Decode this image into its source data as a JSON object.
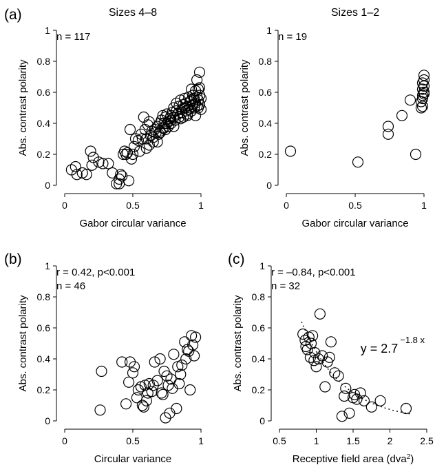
{
  "panel_labels": {
    "a": "(a)",
    "b": "(b)",
    "c": "(c)"
  },
  "colors": {
    "ink": "#000000",
    "background": "#ffffff"
  },
  "chart_data": [
    {
      "type": "scatter",
      "panel": "(a)",
      "title": "Sizes 4–8",
      "xlabel": "Gabor circular variance",
      "ylabel": "Abs. contrast polarity",
      "xlim": [
        0,
        1
      ],
      "ylim": [
        0,
        1
      ],
      "xticks": [
        0,
        0.5,
        1
      ],
      "xtick_labels": [
        "0",
        "0.5",
        "1"
      ],
      "yticks": [
        0,
        0.2,
        0.4,
        0.6,
        0.8,
        1
      ],
      "ytick_labels": [
        "0",
        "0.2",
        "0.4",
        "0.6",
        "0.8",
        "1"
      ],
      "annotation": "n = 117",
      "x": [
        0.05,
        0.08,
        0.09,
        0.13,
        0.16,
        0.19,
        0.2,
        0.21,
        0.25,
        0.28,
        0.32,
        0.35,
        0.38,
        0.4,
        0.4,
        0.41,
        0.42,
        0.43,
        0.44,
        0.45,
        0.46,
        0.47,
        0.48,
        0.49,
        0.5,
        0.51,
        0.52,
        0.54,
        0.55,
        0.56,
        0.57,
        0.58,
        0.59,
        0.6,
        0.61,
        0.62,
        0.63,
        0.64,
        0.65,
        0.66,
        0.67,
        0.68,
        0.69,
        0.7,
        0.7,
        0.71,
        0.72,
        0.72,
        0.73,
        0.74,
        0.74,
        0.75,
        0.76,
        0.76,
        0.77,
        0.78,
        0.78,
        0.79,
        0.8,
        0.8,
        0.81,
        0.82,
        0.82,
        0.83,
        0.84,
        0.84,
        0.85,
        0.86,
        0.86,
        0.87,
        0.87,
        0.88,
        0.88,
        0.89,
        0.89,
        0.9,
        0.9,
        0.91,
        0.91,
        0.92,
        0.92,
        0.93,
        0.93,
        0.94,
        0.94,
        0.95,
        0.95,
        0.96,
        0.96,
        0.97,
        0.97,
        0.97,
        0.98,
        0.98,
        0.98,
        0.99,
        0.99,
        0.99,
        1.0,
        1.0,
        0.93,
        0.9,
        0.85,
        0.8,
        0.75,
        0.7,
        0.65,
        0.62,
        0.6,
        0.68,
        0.73,
        0.78,
        0.83,
        0.88,
        0.95,
        0.99,
        0.96
      ],
      "y": [
        0.1,
        0.12,
        0.07,
        0.08,
        0.07,
        0.22,
        0.13,
        0.18,
        0.15,
        0.14,
        0.14,
        0.08,
        0.01,
        0.04,
        0.01,
        0.07,
        0.06,
        0.2,
        0.22,
        0.2,
        0.21,
        0.03,
        0.36,
        0.17,
        0.2,
        0.25,
        0.3,
        0.29,
        0.22,
        0.33,
        0.3,
        0.44,
        0.36,
        0.3,
        0.39,
        0.41,
        0.32,
        0.35,
        0.31,
        0.36,
        0.34,
        0.38,
        0.33,
        0.4,
        0.35,
        0.42,
        0.37,
        0.45,
        0.4,
        0.44,
        0.36,
        0.46,
        0.41,
        0.38,
        0.43,
        0.45,
        0.4,
        0.47,
        0.44,
        0.5,
        0.42,
        0.48,
        0.53,
        0.46,
        0.51,
        0.44,
        0.55,
        0.49,
        0.47,
        0.52,
        0.44,
        0.5,
        0.56,
        0.48,
        0.53,
        0.51,
        0.46,
        0.57,
        0.49,
        0.54,
        0.5,
        0.55,
        0.48,
        0.58,
        0.52,
        0.5,
        0.56,
        0.53,
        0.61,
        0.51,
        0.57,
        0.68,
        0.55,
        0.5,
        0.62,
        0.58,
        0.73,
        0.52,
        0.56,
        0.49,
        0.62,
        0.45,
        0.43,
        0.38,
        0.4,
        0.34,
        0.28,
        0.26,
        0.24,
        0.28,
        0.37,
        0.42,
        0.46,
        0.5,
        0.55,
        0.63,
        0.45
      ]
    },
    {
      "type": "scatter",
      "panel": "",
      "title": "Sizes 1–2",
      "xlabel": "Gabor circular variance",
      "ylabel": "Abs. contrast polarity",
      "xlim": [
        0,
        1
      ],
      "ylim": [
        0,
        1
      ],
      "xticks": [
        0,
        0.5,
        1
      ],
      "xtick_labels": [
        "0",
        "0.5",
        "1"
      ],
      "yticks": [
        0,
        0.2,
        0.4,
        0.6,
        0.8,
        1
      ],
      "ytick_labels": [
        "0",
        "0.2",
        "0.4",
        "0.6",
        "0.8",
        "1"
      ],
      "annotation": "n = 19",
      "x": [
        0.03,
        0.52,
        0.74,
        0.74,
        0.84,
        0.9,
        0.94,
        0.98,
        0.99,
        0.99,
        0.99,
        1.0,
        1.0,
        1.0,
        0.98,
        0.99,
        1.0,
        0.99,
        1.0
      ],
      "y": [
        0.22,
        0.15,
        0.38,
        0.33,
        0.45,
        0.55,
        0.2,
        0.5,
        0.58,
        0.62,
        0.66,
        0.71,
        0.68,
        0.6,
        0.54,
        0.56,
        0.64,
        0.51,
        0.59
      ]
    },
    {
      "type": "scatter",
      "panel": "(b)",
      "title": "",
      "xlabel": "Circular variance",
      "ylabel": "Abs. contrast polarity",
      "xlim": [
        0,
        1
      ],
      "ylim": [
        0,
        1
      ],
      "xticks": [
        0,
        0.5,
        1
      ],
      "xtick_labels": [
        "0",
        "0.5",
        "1"
      ],
      "yticks": [
        0,
        0.2,
        0.4,
        0.6,
        0.8,
        1
      ],
      "ytick_labels": [
        "0",
        "0.2",
        "0.4",
        "0.6",
        "0.8",
        "1"
      ],
      "annotation": "r = 0.42, p<0.001",
      "annotation2": "n = 46",
      "x": [
        0.26,
        0.27,
        0.42,
        0.45,
        0.47,
        0.48,
        0.5,
        0.51,
        0.53,
        0.54,
        0.56,
        0.57,
        0.58,
        0.59,
        0.6,
        0.61,
        0.62,
        0.64,
        0.65,
        0.66,
        0.68,
        0.7,
        0.71,
        0.72,
        0.73,
        0.74,
        0.75,
        0.76,
        0.77,
        0.78,
        0.79,
        0.8,
        0.82,
        0.83,
        0.84,
        0.85,
        0.86,
        0.88,
        0.89,
        0.9,
        0.91,
        0.92,
        0.93,
        0.94,
        0.95,
        0.96
      ],
      "y": [
        0.07,
        0.32,
        0.38,
        0.11,
        0.25,
        0.38,
        0.31,
        0.35,
        0.15,
        0.2,
        0.22,
        0.1,
        0.09,
        0.23,
        0.13,
        0.18,
        0.24,
        0.19,
        0.23,
        0.38,
        0.26,
        0.4,
        0.18,
        0.17,
        0.32,
        0.02,
        0.29,
        0.23,
        0.05,
        0.27,
        0.21,
        0.43,
        0.08,
        0.35,
        0.24,
        0.3,
        0.36,
        0.51,
        0.4,
        0.46,
        0.45,
        0.2,
        0.55,
        0.49,
        0.42,
        0.54
      ]
    },
    {
      "type": "scatter",
      "panel": "(c)",
      "title": "",
      "xlabel": "Receptive field area (dva",
      "xlabel_sup": "2",
      "xlabel_tail": ")",
      "ylabel": "Abs. contrast polarity",
      "xlim": [
        0.5,
        2.5
      ],
      "ylim": [
        0,
        1
      ],
      "xticks": [
        0.5,
        1,
        1.5,
        2,
        2.5
      ],
      "xtick_labels": [
        "0.5",
        "1",
        "1.5",
        "2",
        "2.5"
      ],
      "yticks": [
        0,
        0.2,
        0.4,
        0.6,
        0.8,
        1
      ],
      "ytick_labels": [
        "0",
        "0.2",
        "0.4",
        "0.6",
        "0.8",
        "1"
      ],
      "annotation": "r = –0.84, p<0.001",
      "annotation2": "n = 32",
      "fit_label": "y = 2.7",
      "fit_exponent": "−1.8 x",
      "fit": {
        "a": 2.7,
        "b": -1.8,
        "x_start": 0.8,
        "x_end": 2.3
      },
      "x": [
        0.82,
        0.85,
        0.88,
        0.9,
        0.92,
        0.95,
        0.97,
        1.0,
        1.05,
        1.08,
        1.12,
        1.15,
        1.2,
        1.25,
        1.3,
        1.35,
        1.4,
        1.45,
        1.5,
        1.55,
        1.6,
        1.65,
        1.75,
        1.87,
        2.22,
        0.86,
        0.93,
        0.98,
        1.03,
        1.18,
        1.38,
        1.52
      ],
      "y": [
        0.56,
        0.52,
        0.46,
        0.54,
        0.41,
        0.55,
        0.39,
        0.35,
        0.69,
        0.42,
        0.22,
        0.38,
        0.51,
        0.31,
        0.29,
        0.03,
        0.21,
        0.05,
        0.15,
        0.14,
        0.18,
        0.13,
        0.09,
        0.13,
        0.08,
        0.48,
        0.5,
        0.44,
        0.4,
        0.41,
        0.16,
        0.17
      ]
    }
  ]
}
